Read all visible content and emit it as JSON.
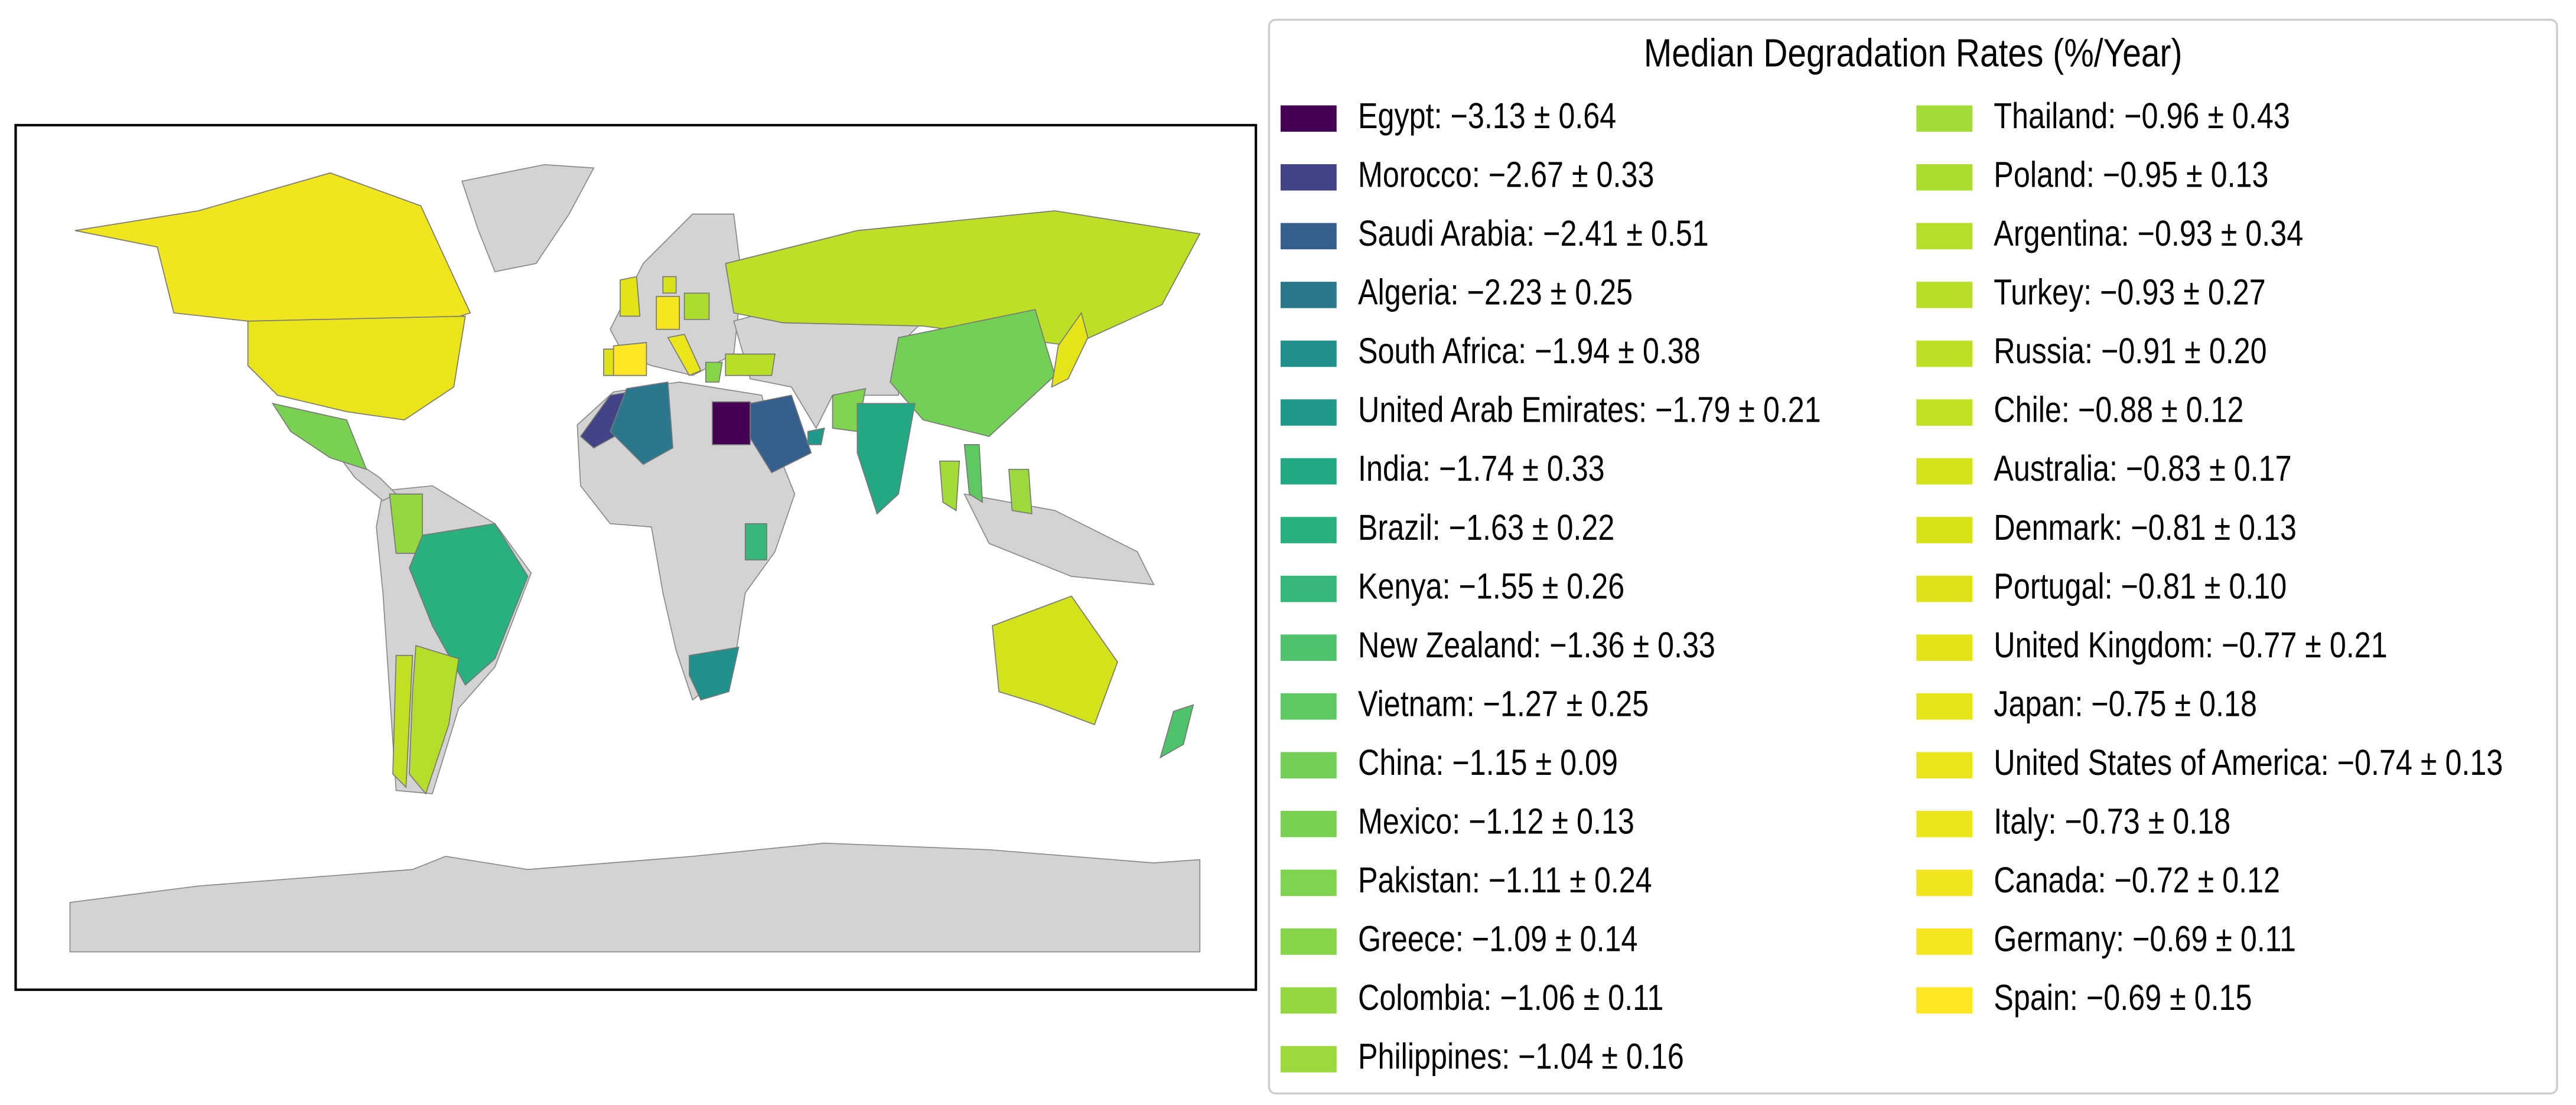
{
  "map": {
    "legend": {
      "title": "Median Degradation Rates (%/Year)",
      "entries": [
        {
          "label": "Egypt: −3.13 ± 0.64",
          "color": "#440154"
        },
        {
          "label": "Morocco: −2.67 ± 0.33",
          "color": "#414487"
        },
        {
          "label": "Saudi Arabia: −2.41 ± 0.51",
          "color": "#355f8d"
        },
        {
          "label": "Algeria: −2.23 ± 0.25",
          "color": "#2a788e"
        },
        {
          "label": "South Africa: −1.94 ± 0.38",
          "color": "#21918c"
        },
        {
          "label": "United Arab Emirates: −1.79 ± 0.21",
          "color": "#1f9a8a"
        },
        {
          "label": "India: −1.74 ± 0.33",
          "color": "#22a884"
        },
        {
          "label": "Brazil: −1.63 ± 0.22",
          "color": "#2ab07f"
        },
        {
          "label": "Kenya: −1.55 ± 0.26",
          "color": "#35b779"
        },
        {
          "label": "New Zealand: −1.36 ± 0.33",
          "color": "#4ec36b"
        },
        {
          "label": "Vietnam: −1.27 ± 0.25",
          "color": "#5ec962"
        },
        {
          "label": "China: −1.15 ± 0.09",
          "color": "#73d056"
        },
        {
          "label": "Mexico: −1.12 ± 0.13",
          "color": "#7ad151"
        },
        {
          "label": "Pakistan: −1.11 ± 0.24",
          "color": "#7fd34e"
        },
        {
          "label": "Greece: −1.09 ± 0.14",
          "color": "#86d549"
        },
        {
          "label": "Colombia: −1.06 ± 0.11",
          "color": "#93d741"
        },
        {
          "label": "Philippines: −1.04 ± 0.16",
          "color": "#9bd93c"
        },
        {
          "label": "Thailand: −0.96 ± 0.43",
          "color": "#a5db36"
        },
        {
          "label": "Poland: −0.95 ± 0.13",
          "color": "#addc30"
        },
        {
          "label": "Argentina: −0.93 ± 0.34",
          "color": "#b5de2b"
        },
        {
          "label": "Turkey: −0.93 ± 0.27",
          "color": "#b8de29"
        },
        {
          "label": "Russia: −0.91 ± 0.20",
          "color": "#bddf26"
        },
        {
          "label": "Chile: −0.88 ± 0.12",
          "color": "#c2df23"
        },
        {
          "label": "Australia: −0.83 ± 0.17",
          "color": "#d2e21b"
        },
        {
          "label": "Denmark: −0.81 ± 0.13",
          "color": "#d8e219"
        },
        {
          "label": "Portugal: −0.81 ± 0.10",
          "color": "#dde318"
        },
        {
          "label": "United Kingdom: −0.77 ± 0.21",
          "color": "#e2e418"
        },
        {
          "label": "Japan: −0.75 ± 0.18",
          "color": "#e5e419"
        },
        {
          "label": "United States of America: −0.74 ± 0.13",
          "color": "#eae51a"
        },
        {
          "label": "Italy: −0.73 ± 0.18",
          "color": "#ece51b"
        },
        {
          "label": "Canada: −0.72 ± 0.12",
          "color": "#f1e51d"
        },
        {
          "label": "Germany: −0.69 ± 0.11",
          "color": "#f6e620"
        },
        {
          "label": "Spain: −0.69 ± 0.15",
          "color": "#fde725"
        }
      ]
    }
  }
}
